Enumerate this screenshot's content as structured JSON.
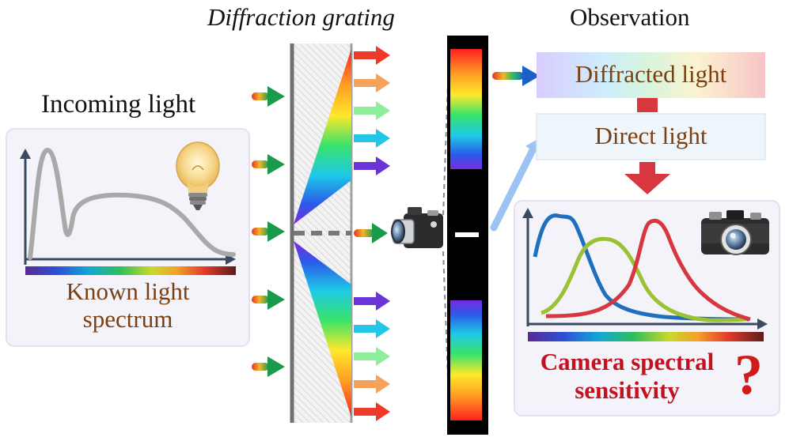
{
  "labels": {
    "incoming_light": "Incoming light",
    "diffraction_grating": "Diffraction grating",
    "observation": "Observation",
    "known_spectrum_line1": "Known light",
    "known_spectrum_line2": "spectrum",
    "diffracted_light": "Diffracted light",
    "direct_light": "Direct light",
    "sensitivity_line1": "Camera spectral",
    "sensitivity_line2": "sensitivity",
    "question_mark": "?"
  },
  "icons": {
    "bulb": "light-bulb-icon",
    "camera_main": "camera-icon",
    "camera_small": "camera-icon"
  },
  "colors": {
    "label_brown": "#7a3f12",
    "sensitivity_red": "#c2121f",
    "question_red": "#d11a1a",
    "red_arrow": "#d8373f",
    "blue_arrow": "#9dc3f2",
    "curve_blue": "#1f6fbf",
    "curve_green": "#9bc232",
    "curve_red": "#d8373f"
  }
}
